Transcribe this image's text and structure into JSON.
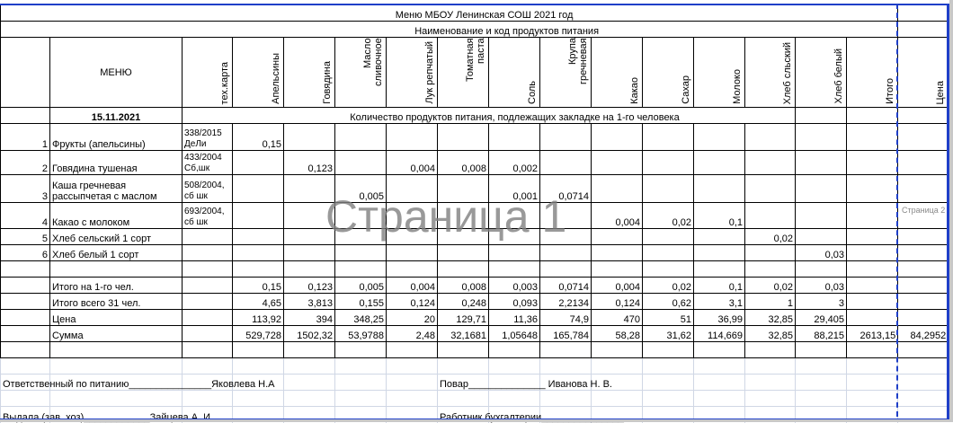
{
  "title": "Меню  МБОУ  Ленинская СОШ       2021 год",
  "subtitle": "Наименование и код продуктов питания",
  "headers": {
    "menu": "МЕНЮ",
    "techcard": "тех.карта",
    "products": [
      "Апельсины",
      "Говядина",
      "Масло сливочное",
      "Лук репчатый",
      "Томатная паста",
      "Соль",
      "Крупа гречневая",
      "Какао",
      "Сахар",
      "Молоко",
      "Хлеб сльский",
      "Хлеб белый",
      "Итого",
      "Цена"
    ]
  },
  "date": "15.11.2021",
  "quantity_caption": "Количество продуктов питания, подлежащих закладке на 1-го человека",
  "dishes": [
    {
      "num": "1",
      "name": "Фрукты (апельсины)",
      "card": "338/2015 ДеЛи",
      "values": [
        "0,15",
        "",
        "",
        "",
        "",
        "",
        "",
        "",
        "",
        "",
        "",
        "",
        "",
        ""
      ]
    },
    {
      "num": "2",
      "name": "Говядина тушеная",
      "card": "433/2004 Сб,шк",
      "values": [
        "",
        "0,123",
        "",
        "0,004",
        "0,008",
        "0,002",
        "",
        "",
        "",
        "",
        "",
        "",
        "",
        ""
      ]
    },
    {
      "num": "3",
      "name": "Каша гречневая рассыпчетая с маслом",
      "card": "508/2004, сб шк",
      "values": [
        "",
        "",
        "0,005",
        "",
        "",
        "0,001",
        "0,0714",
        "",
        "",
        "",
        "",
        "",
        "",
        ""
      ]
    },
    {
      "num": "4",
      "name": "Какао с молоком",
      "card": "693/2004, сб шк",
      "values": [
        "",
        "",
        "",
        "",
        "",
        "",
        "",
        "0,004",
        "0,02",
        "0,1",
        "",
        "",
        "",
        ""
      ]
    },
    {
      "num": "5",
      "name": "Хлеб сельский 1 сорт",
      "card": "",
      "values": [
        "",
        "",
        "",
        "",
        "",
        "",
        "",
        "",
        "",
        "",
        "0,02",
        "",
        "",
        ""
      ]
    },
    {
      "num": "6",
      "name": "Хлеб белый 1 сорт",
      "card": "",
      "values": [
        "",
        "",
        "",
        "",
        "",
        "",
        "",
        "",
        "",
        "",
        "",
        "0,03",
        "",
        ""
      ]
    }
  ],
  "totals": [
    {
      "name": "Итого на 1-го чел.",
      "values": [
        "0,15",
        "0,123",
        "0,005",
        "0,004",
        "0,008",
        "0,003",
        "0,0714",
        "0,004",
        "0,02",
        "0,1",
        "0,02",
        "0,03",
        "",
        ""
      ]
    },
    {
      "name": "Итого  всего 31 чел.",
      "values": [
        "4,65",
        "3,813",
        "0,155",
        "0,124",
        "0,248",
        "0,093",
        "2,2134",
        "0,124",
        "0,62",
        "3,1",
        "1",
        "3",
        "",
        ""
      ]
    },
    {
      "name": "Цена",
      "values": [
        "113,92",
        "394",
        "348,25",
        "20",
        "129,71",
        "11,36",
        "74,9",
        "470",
        "51",
        "36,99",
        "32,85",
        "29,405",
        "",
        ""
      ]
    },
    {
      "name": "Сумма",
      "values": [
        "529,728",
        "1502,32",
        "53,9788",
        "2,48",
        "32,1681",
        "1,05648",
        "165,784",
        "58,28",
        "31,62",
        "114,669",
        "32,85",
        "88,215",
        "2613,15",
        "84,2952"
      ]
    }
  ],
  "signatures": {
    "responsible": "Ответственный по питанию_______________Яковлева Н.А",
    "cook": "Повар______________ Иванова Н. В.",
    "issued": "Выдала (зав. хоз)____________Зайцева А. И.",
    "accountant": "Работник  бухгалтерии_______________"
  },
  "watermarks": {
    "page1": "Страница 1",
    "page2": "Страница 2"
  },
  "colors": {
    "page_border": "#1f3fc8",
    "grid": "#d0d7e5"
  }
}
